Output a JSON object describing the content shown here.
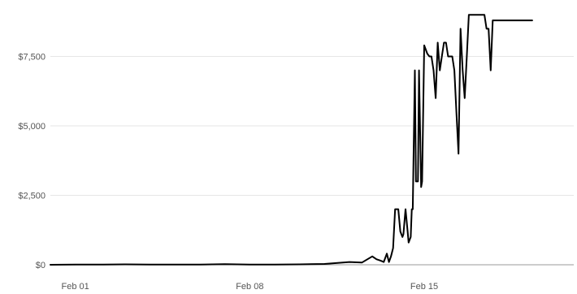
{
  "chart_data": {
    "type": "line",
    "title": "",
    "xlabel": "",
    "ylabel": "",
    "grid": true,
    "legend": "none",
    "colors": {
      "line": "#000000",
      "grid": "#e6e6e6",
      "axis": "#9a9a9a",
      "text": "#555555"
    },
    "xlim": [
      "2021-01-31",
      "2021-02-21"
    ],
    "ylim": [
      0,
      9300
    ],
    "yticks": [
      0,
      2500,
      5000,
      7500
    ],
    "ytick_labels": [
      "$0",
      "$2,500",
      "$5,000",
      "$7,500"
    ],
    "xticks": [
      "2021-02-01",
      "2021-02-08",
      "2021-02-15"
    ],
    "xtick_labels": [
      "Feb 01",
      "Feb 08",
      "Feb 15"
    ],
    "series": [
      {
        "x": [
          "2021-01-31 00:00",
          "2021-02-01 00:00",
          "2021-02-02 00:00",
          "2021-02-03 00:00",
          "2021-02-04 00:00",
          "2021-02-05 00:00",
          "2021-02-06 00:00",
          "2021-02-07 00:00",
          "2021-02-08 00:00",
          "2021-02-09 00:00",
          "2021-02-10 00:00",
          "2021-02-11 00:00",
          "2021-02-12 00:00",
          "2021-02-12 12:00",
          "2021-02-12 22:00",
          "2021-02-13 02:00",
          "2021-02-13 06:00",
          "2021-02-13 09:00",
          "2021-02-13 12:00",
          "2021-02-13 14:00",
          "2021-02-13 16:00",
          "2021-02-13 18:00",
          "2021-02-13 20:00",
          "2021-02-13 23:00",
          "2021-02-14 01:00",
          "2021-02-14 03:00",
          "2021-02-14 04:00",
          "2021-02-14 06:00",
          "2021-02-14 08:00",
          "2021-02-14 09:00",
          "2021-02-14 11:00",
          "2021-02-14 12:00",
          "2021-02-14 13:00",
          "2021-02-14 15:00",
          "2021-02-14 16:00",
          "2021-02-14 18:00",
          "2021-02-14 19:00",
          "2021-02-14 21:00",
          "2021-02-14 22:00",
          "2021-02-15 00:00",
          "2021-02-15 01:00",
          "2021-02-15 03:00",
          "2021-02-15 05:00",
          "2021-02-15 07:00",
          "2021-02-15 09:00",
          "2021-02-15 11:00",
          "2021-02-15 13:00",
          "2021-02-15 15:00",
          "2021-02-15 17:00",
          "2021-02-15 19:00",
          "2021-02-15 21:00",
          "2021-02-15 23:00",
          "2021-02-16 01:00",
          "2021-02-16 03:00",
          "2021-02-16 05:00",
          "2021-02-16 07:00",
          "2021-02-16 09:00",
          "2021-02-16 11:00",
          "2021-02-16 13:00",
          "2021-02-16 15:00",
          "2021-02-16 17:00",
          "2021-02-16 19:00",
          "2021-02-16 21:00",
          "2021-02-17 00:00",
          "2021-02-17 02:00",
          "2021-02-17 04:00",
          "2021-02-17 06:00",
          "2021-02-17 08:00",
          "2021-02-17 10:00",
          "2021-02-17 12:00",
          "2021-02-17 14:00",
          "2021-02-17 16:00",
          "2021-02-17 18:00",
          "2021-02-17 20:00",
          "2021-02-17 22:00",
          "2021-02-18 00:00",
          "2021-02-18 02:00",
          "2021-02-18 04:00",
          "2021-02-18 06:00",
          "2021-02-18 08:00",
          "2021-02-18 10:00",
          "2021-02-18 12:00",
          "2021-02-18 14:00",
          "2021-02-18 16:00",
          "2021-02-18 18:00",
          "2021-02-18 20:00",
          "2021-02-18 22:00",
          "2021-02-19 00:00",
          "2021-02-19 02:00",
          "2021-02-19 04:00",
          "2021-02-19 05:00",
          "2021-02-19 06:00",
          "2021-02-19 08:00"
        ],
        "y": [
          0,
          10,
          5,
          15,
          10,
          5,
          10,
          20,
          10,
          5,
          15,
          30,
          100,
          80,
          300,
          200,
          150,
          100,
          400,
          100,
          300,
          600,
          2000,
          2000,
          1200,
          1000,
          1100,
          2000,
          1200,
          800,
          1000,
          2000,
          2000,
          7000,
          3000,
          3000,
          7000,
          2800,
          3000,
          7900,
          7800,
          7600,
          7500,
          7500,
          7000,
          6000,
          8000,
          7000,
          7500,
          8000,
          8000,
          7500,
          7500,
          7500,
          7000,
          5500,
          4000,
          8500,
          7000,
          6000,
          7500,
          9000,
          9000,
          9000,
          9000,
          9000,
          9000,
          9000,
          9000,
          8500,
          8500,
          7000,
          8800,
          8800,
          8800,
          8800,
          8800,
          8800,
          8800,
          8800,
          8800,
          8800,
          8800,
          8800,
          8800,
          8800,
          8800,
          8800,
          8800,
          8800,
          8800,
          8800,
          8800
        ]
      }
    ]
  }
}
